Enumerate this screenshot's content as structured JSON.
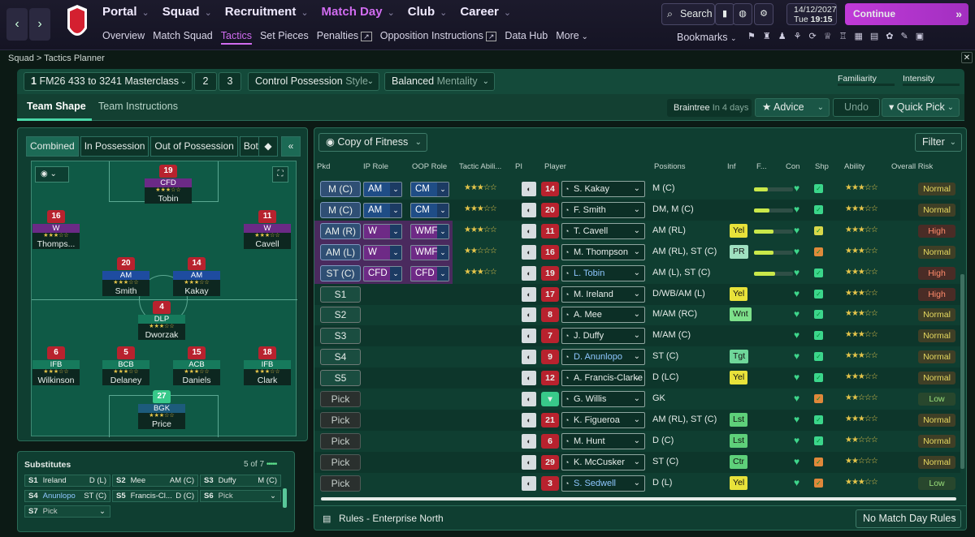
{
  "nav": {
    "back": "‹",
    "forward": "›",
    "main": [
      "Portal",
      "Squad",
      "Recruitment",
      "Match Day",
      "Club",
      "Career"
    ],
    "active": "Match Day",
    "sub": [
      "Overview",
      "Match Squad",
      "Tactics",
      "Set Pieces",
      "Penalties",
      "Opposition Instructions",
      "Data Hub",
      "More"
    ],
    "sub_active": "Tactics"
  },
  "top": {
    "search": "Search",
    "date": "14/12/2027",
    "day": "Tue",
    "time": "19:15",
    "continue": "Continue",
    "bookmarks": "Bookmarks"
  },
  "breadcrumb": "Squad > Tactics Planner",
  "tactic": {
    "slot": "1",
    "name": "FM26 433 to 3241 Masterclass",
    "slot2": "2",
    "slot3": "3",
    "style_value": "Control Possession",
    "style_label": "Style",
    "mentality_value": "Balanced",
    "mentality_label": "Mentality",
    "familiarity": "Familiarity",
    "intensity": "Intensity"
  },
  "tabs": {
    "team_shape": "Team Shape",
    "team_instructions": "Team Instructions",
    "opponent": "Braintree",
    "opponent_when": "In 4 days",
    "advice": "Advice",
    "undo": "Undo",
    "quick_pick": "Quick Pick"
  },
  "views": [
    "Combined",
    "In Possession",
    "Out of Possession",
    "Both"
  ],
  "pitch_players": [
    {
      "num": "19",
      "role": "CFD",
      "name": "Tobin",
      "line": "fwd"
    },
    {
      "num": "16",
      "role": "W",
      "name": "Thomps...",
      "line": "fwd"
    },
    {
      "num": "11",
      "role": "W",
      "name": "Cavell",
      "line": "fwd"
    },
    {
      "num": "20",
      "role": "AM",
      "name": "Smith",
      "line": "mid"
    },
    {
      "num": "14",
      "role": "AM",
      "name": "Kakay",
      "line": "mid"
    },
    {
      "num": "4",
      "role": "DLP",
      "name": "Dworzak",
      "line": "def"
    },
    {
      "num": "6",
      "role": "IFB",
      "name": "Wilkinson",
      "line": "def"
    },
    {
      "num": "5",
      "role": "BCB",
      "name": "Delaney",
      "line": "def"
    },
    {
      "num": "15",
      "role": "ACB",
      "name": "Daniels",
      "line": "def"
    },
    {
      "num": "18",
      "role": "IFB",
      "name": "Clark",
      "line": "def"
    },
    {
      "num": "27",
      "role": "BGK",
      "name": "Price",
      "line": "gk"
    }
  ],
  "subs": {
    "title": "Substitutes",
    "count": "5 of 7",
    "items": [
      {
        "slot": "S1",
        "name": "Ireland",
        "pos": "D (L)"
      },
      {
        "slot": "S2",
        "name": "Mee",
        "pos": "AM (C)"
      },
      {
        "slot": "S3",
        "name": "Duffy",
        "pos": "M (C)"
      },
      {
        "slot": "S4",
        "name": "Anunlopo",
        "pos": "ST (C)"
      },
      {
        "slot": "S5",
        "name": "Francis-Cl...",
        "pos": "D (C)"
      },
      {
        "slot": "S6",
        "name": "Pick",
        "pos": ""
      },
      {
        "slot": "S7",
        "name": "Pick",
        "pos": ""
      }
    ]
  },
  "table": {
    "view": "Copy of Fitness",
    "filter": "Filter",
    "headers": [
      "Pkd",
      "IP Role",
      "OOP Role",
      "Tactic Abili...",
      "PI",
      "Player",
      "Positions",
      "Inf",
      "F...",
      "Con",
      "Shp",
      "Ability",
      "Overall Risk"
    ],
    "rows": [
      {
        "pkd": "M (C)",
        "ip": "AM",
        "oop": "CM",
        "num": "14",
        "player": "S. Kakay",
        "pos": "M (C)",
        "inf": "",
        "fit": 0.35,
        "risk": "Normal",
        "ts": "★★★☆☆",
        "ab": "★★★☆☆"
      },
      {
        "pkd": "M (C)",
        "ip": "AM",
        "oop": "CM",
        "num": "20",
        "player": "F. Smith",
        "pos": "DM, M (C)",
        "inf": "",
        "fit": 0.4,
        "risk": "Normal",
        "ts": "★★★☆☆",
        "ab": "★★★☆☆"
      },
      {
        "pkd": "AM (R)",
        "ip": "W",
        "oop": "WMF",
        "num": "11",
        "player": "T. Cavell",
        "pos": "AM (RL)",
        "inf": "Yel",
        "fit": 0.5,
        "risk": "High",
        "ts": "★★★☆☆",
        "ab": "★★★☆☆"
      },
      {
        "pkd": "AM (L)",
        "ip": "W",
        "oop": "WMF",
        "num": "16",
        "player": "M. Thompson",
        "pos": "AM (RL), ST (C)",
        "inf": "PR",
        "fit": 0.5,
        "risk": "Normal",
        "ts": "★★☆☆☆",
        "ab": "★★★☆☆"
      },
      {
        "pkd": "ST (C)",
        "ip": "CFD",
        "oop": "CFD",
        "num": "19",
        "player": "L. Tobin",
        "pos": "AM (L), ST (C)",
        "inf": "",
        "fit": 0.55,
        "risk": "High",
        "ts": "★★★☆☆",
        "ab": "★★★☆☆"
      },
      {
        "pkd": "S1",
        "ip": "",
        "oop": "",
        "num": "17",
        "player": "M. Ireland",
        "pos": "D/WB/AM (L)",
        "inf": "Yel",
        "fit": 0,
        "risk": "High",
        "ts": "",
        "ab": "★★★☆☆"
      },
      {
        "pkd": "S2",
        "ip": "",
        "oop": "",
        "num": "8",
        "player": "A. Mee",
        "pos": "M/AM (RC)",
        "inf": "Wnt",
        "fit": 0,
        "risk": "Normal",
        "ts": "",
        "ab": "★★★☆☆"
      },
      {
        "pkd": "S3",
        "ip": "",
        "oop": "",
        "num": "7",
        "player": "J. Duffy",
        "pos": "M/AM (C)",
        "inf": "",
        "fit": 0,
        "risk": "Normal",
        "ts": "",
        "ab": "★★★☆☆"
      },
      {
        "pkd": "S4",
        "ip": "",
        "oop": "",
        "num": "9",
        "player": "D. Anunlopo",
        "pos": "ST (C)",
        "inf": "Tgt",
        "fit": 0,
        "risk": "Normal",
        "ts": "",
        "ab": "★★★☆☆"
      },
      {
        "pkd": "S5",
        "ip": "",
        "oop": "",
        "num": "12",
        "player": "A. Francis-Clarke",
        "pos": "D (LC)",
        "inf": "Yel",
        "fit": 0,
        "risk": "Normal",
        "ts": "",
        "ab": "★★★☆☆"
      },
      {
        "pkd": "Pick",
        "ip": "",
        "oop": "",
        "num": "",
        "player": "G. Willis",
        "pos": "GK",
        "inf": "",
        "fit": 0,
        "risk": "Low",
        "ts": "",
        "ab": "★★☆☆☆"
      },
      {
        "pkd": "Pick",
        "ip": "",
        "oop": "",
        "num": "21",
        "player": "K. Figueroa",
        "pos": "AM (RL), ST (C)",
        "inf": "Lst",
        "fit": 0,
        "risk": "Normal",
        "ts": "",
        "ab": "★★★☆☆"
      },
      {
        "pkd": "Pick",
        "ip": "",
        "oop": "",
        "num": "6",
        "player": "M. Hunt",
        "pos": "D (C)",
        "inf": "Lst",
        "fit": 0,
        "risk": "Normal",
        "ts": "",
        "ab": "★★☆☆☆"
      },
      {
        "pkd": "Pick",
        "ip": "",
        "oop": "",
        "num": "29",
        "player": "K. McCusker",
        "pos": "ST (C)",
        "inf": "Ctr",
        "fit": 0,
        "risk": "Normal",
        "ts": "",
        "ab": "★★☆☆☆"
      },
      {
        "pkd": "Pick",
        "ip": "",
        "oop": "",
        "num": "3",
        "player": "S. Sedwell",
        "pos": "D (L)",
        "inf": "Yel",
        "fit": 0,
        "risk": "Low",
        "ts": "",
        "ab": "★★★☆☆"
      }
    ]
  },
  "footer": {
    "rules": "Rules - Enterprise North",
    "no_match": "No Match Day Rules"
  }
}
